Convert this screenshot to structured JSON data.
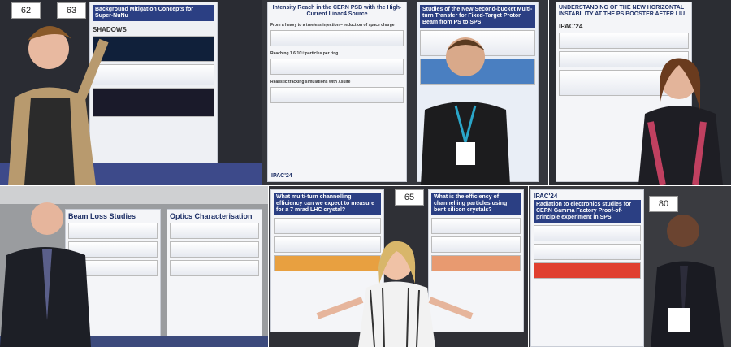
{
  "photos": [
    {
      "boards": [
        "62",
        "63"
      ],
      "posters": [
        {
          "title": "Background Mitigation Concepts for Super-NuNu",
          "logo": "SHADOWS"
        }
      ]
    },
    {
      "posters": [
        {
          "title": "Intensity Reach in the CERN PSB with the High-Current Linac4 Source",
          "sections": [
            "From a heavy to a treeless injection – reduction of space charge",
            "Reaching 1.6·10¹³ particles per ring",
            "Realistic tracking simulations with Xsuite"
          ],
          "footer": "IPAC'24"
        },
        {
          "title": "Studies of the New Second-bucket Multi-turn Transfer for Fixed-Target Proton Beam from PS to SPS"
        }
      ]
    },
    {
      "posters": [
        {
          "title": "UNDERSTANDING OF THE NEW HORIZONTAL INSTABILITY AT THE PS BOOSTER AFTER LIU",
          "logo": "IPAC'24"
        }
      ]
    },
    {
      "posters": [
        {
          "title": "Beam Loss Studies"
        },
        {
          "title": "Optics Characterisation"
        }
      ]
    },
    {
      "boards": [
        "65"
      ],
      "posters": [
        {
          "title": "What multi-turn channelling efficiency can we expect to measure for a 7 mrad LHC crystal?"
        },
        {
          "title": "What is the efficiency of channelling particles using bent silicon crystals?"
        }
      ]
    },
    {
      "boards": [
        "80"
      ],
      "posters": [
        {
          "title": "Radiation to electronics studies for CERN Gamma Factory Proof-of-principle experiment in SPS",
          "logo": "IPAC'24"
        }
      ]
    }
  ]
}
